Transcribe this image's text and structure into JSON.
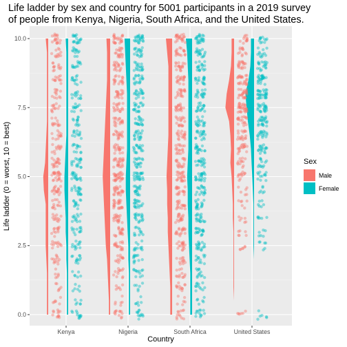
{
  "chart_data": {
    "type": "raincloud",
    "title_lines": [
      "Life ladder by sex and country for 5001 participants in a 2019 survey",
      "of people from Kenya, Nigeria, South Africa, and the United States."
    ],
    "xlabel": "Country",
    "ylabel": "Life ladder (0 = worst, 10 = best)",
    "categories": [
      "Kenya",
      "Nigeria",
      "South Africa",
      "United States"
    ],
    "y_ticks": [
      0.0,
      2.5,
      5.0,
      7.5,
      10.0
    ],
    "y_tick_labels": [
      "0.0",
      "2.5",
      "5.0",
      "7.5",
      "10.0"
    ],
    "ylim": [
      -0.4,
      10.45
    ],
    "grid": true,
    "legend": {
      "title": "Sex",
      "position": "right"
    },
    "series": [
      {
        "name": "Male",
        "color": "#F8766D",
        "density": [
          [
            0.02,
            0.02,
            0.02,
            0.02,
            0.03,
            0.04,
            0.04,
            0.04,
            0.04,
            0.07,
            0.08,
            0.05,
            0.04,
            0.03,
            0.02,
            0.02,
            0.02,
            0.02,
            0.02,
            0.02,
            0.04
          ],
          [
            0.02,
            0.02,
            0.03,
            0.04,
            0.05,
            0.07,
            0.08,
            0.09,
            0.1,
            0.11,
            0.12,
            0.11,
            0.1,
            0.09,
            0.08,
            0.07,
            0.06,
            0.05,
            0.05,
            0.05,
            0.06
          ],
          [
            0.03,
            0.03,
            0.03,
            0.04,
            0.05,
            0.06,
            0.07,
            0.07,
            0.08,
            0.08,
            0.09,
            0.08,
            0.07,
            0.06,
            0.06,
            0.06,
            0.06,
            0.06,
            0.06,
            0.08,
            0.1
          ],
          [
            0.0,
            0.0,
            0.01,
            0.01,
            0.01,
            0.01,
            0.01,
            0.02,
            0.02,
            0.03,
            0.04,
            0.06,
            0.05,
            0.06,
            0.08,
            0.14,
            0.12,
            0.08,
            0.05,
            0.04,
            0.04
          ]
        ]
      },
      {
        "name": "Female",
        "color": "#00BFC4",
        "density": [
          [
            0.02,
            0.02,
            0.02,
            0.02,
            0.03,
            0.03,
            0.04,
            0.04,
            0.05,
            0.06,
            0.06,
            0.05,
            0.04,
            0.03,
            0.03,
            0.03,
            0.03,
            0.03,
            0.03,
            0.03,
            0.04
          ],
          [
            0.02,
            0.02,
            0.02,
            0.02,
            0.03,
            0.03,
            0.04,
            0.05,
            0.06,
            0.07,
            0.07,
            0.06,
            0.05,
            0.05,
            0.05,
            0.05,
            0.05,
            0.06,
            0.07,
            0.08,
            0.09
          ],
          [
            0.03,
            0.03,
            0.03,
            0.03,
            0.04,
            0.05,
            0.06,
            0.06,
            0.07,
            0.07,
            0.08,
            0.07,
            0.06,
            0.06,
            0.06,
            0.06,
            0.06,
            0.06,
            0.07,
            0.08,
            0.1
          ],
          [
            0.0,
            0.0,
            0.0,
            0.0,
            0.0,
            0.01,
            0.01,
            0.01,
            0.01,
            0.02,
            0.03,
            0.04,
            0.05,
            0.07,
            0.1,
            0.12,
            0.14,
            0.09,
            0.06,
            0.05,
            0.05
          ]
        ]
      }
    ],
    "score_weights": [
      [
        [
          2,
          1,
          1,
          1,
          2,
          2,
          2,
          2,
          2,
          3,
          4,
          3,
          2,
          2,
          2,
          2,
          2,
          2,
          2,
          2,
          3
        ],
        [
          2,
          1,
          1,
          2,
          2,
          3,
          3,
          3,
          4,
          4,
          5,
          4,
          3,
          3,
          3,
          3,
          3,
          3,
          3,
          3,
          4
        ],
        [
          2,
          1,
          2,
          2,
          2,
          3,
          3,
          3,
          3,
          3,
          4,
          3,
          3,
          3,
          3,
          3,
          3,
          3,
          3,
          3,
          4
        ],
        [
          1,
          0,
          0,
          0,
          0,
          1,
          1,
          1,
          1,
          1,
          2,
          2,
          3,
          3,
          3,
          5,
          4,
          4,
          3,
          2,
          2
        ]
      ],
      [
        [
          2,
          1,
          1,
          1,
          2,
          2,
          2,
          2,
          2,
          3,
          3,
          3,
          2,
          2,
          2,
          2,
          2,
          2,
          2,
          2,
          3
        ],
        [
          2,
          1,
          1,
          2,
          2,
          2,
          2,
          3,
          3,
          3,
          4,
          3,
          3,
          3,
          3,
          3,
          3,
          3,
          3,
          3,
          4
        ],
        [
          2,
          1,
          2,
          2,
          2,
          3,
          3,
          3,
          3,
          3,
          4,
          3,
          3,
          3,
          3,
          3,
          3,
          3,
          3,
          3,
          4
        ],
        [
          1,
          0,
          0,
          0,
          0,
          1,
          1,
          1,
          1,
          1,
          2,
          2,
          3,
          3,
          4,
          4,
          5,
          4,
          3,
          2,
          2
        ]
      ]
    ]
  }
}
